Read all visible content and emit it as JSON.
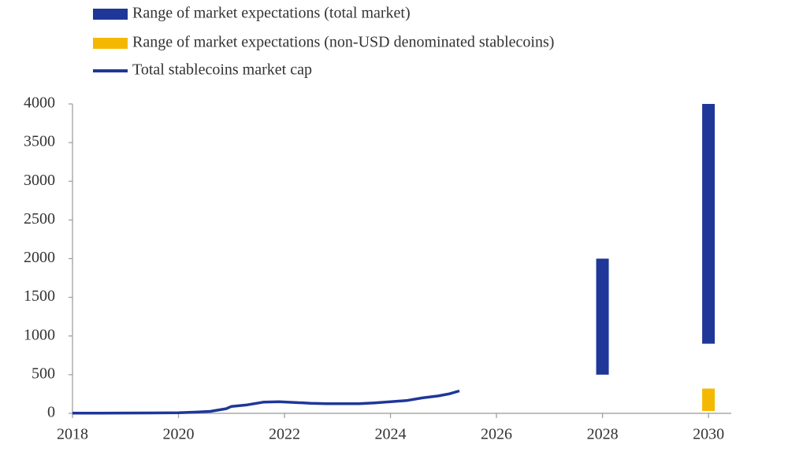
{
  "chart_data": {
    "type": "line",
    "xlim": [
      2018,
      2030.43
    ],
    "xticks": [
      2018,
      2020,
      2022,
      2024,
      2026,
      2028,
      2030
    ],
    "ylim": [
      0,
      4000
    ],
    "yticks": [
      0,
      500,
      1000,
      1500,
      2000,
      2500,
      3000,
      3500,
      4000
    ],
    "series": [
      {
        "name": "Range of market expectations (total market)",
        "type": "range",
        "color": "#1f3799",
        "x": [
          2028,
          2030
        ],
        "low": [
          500,
          900
        ],
        "high": [
          2000,
          4000
        ]
      },
      {
        "name": "Range of market expectations (non-USD denominated stablecoins)",
        "type": "range",
        "color": "#f5b800",
        "x": [
          2030
        ],
        "low": [
          30
        ],
        "high": [
          320
        ]
      },
      {
        "name": "Total stablecoins market cap",
        "type": "line",
        "color": "#1f3799",
        "x": [
          2018.0,
          2018.5,
          2019.0,
          2019.5,
          2020.0,
          2020.3,
          2020.6,
          2020.9,
          2021.0,
          2021.3,
          2021.6,
          2021.9,
          2022.2,
          2022.5,
          2022.8,
          2023.1,
          2023.4,
          2023.7,
          2024.0,
          2024.3,
          2024.6,
          2024.9,
          2025.1,
          2025.3
        ],
        "values": [
          2,
          3,
          4,
          5,
          8,
          15,
          25,
          60,
          90,
          110,
          145,
          150,
          140,
          130,
          125,
          125,
          125,
          135,
          150,
          165,
          200,
          225,
          250,
          290
        ]
      }
    ]
  }
}
